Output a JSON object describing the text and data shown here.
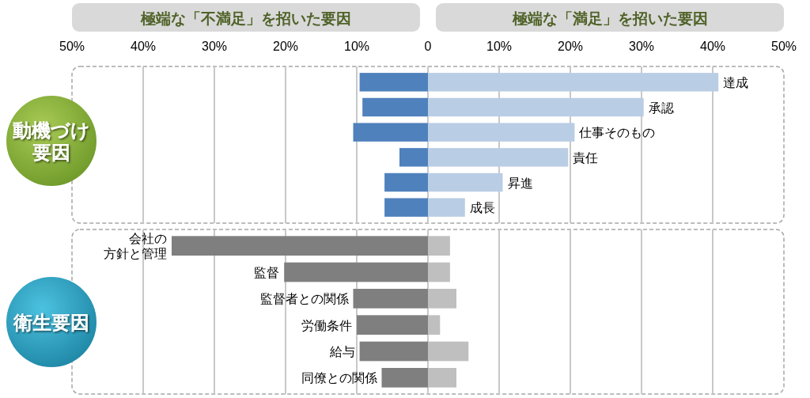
{
  "chart_data": [
    {
      "type": "bar",
      "orientation": "horizontal",
      "stacked": true,
      "title": "動機づけ要因",
      "annotations": [
        "極端な「不満足」を招いた要因",
        "極端な「満足」を招いた要因"
      ],
      "categories": [
        "達成",
        "承認",
        "仕事そのもの",
        "責任",
        "昇進",
        "成長"
      ],
      "series": [
        {
          "color": "#4f81bd",
          "values": [
            -9.6,
            -9.2,
            -10.5,
            -4.0,
            -6.1,
            -6.1
          ]
        },
        {
          "color": "#b9cde5",
          "values": [
            40.8,
            30.3,
            20.6,
            19.7,
            10.5,
            5.2
          ]
        }
      ],
      "xlim": [
        -50,
        50
      ],
      "xticks": [
        {
          "value": -50,
          "label": "50%"
        },
        {
          "value": -40,
          "label": "40%"
        },
        {
          "value": -30,
          "label": "30%"
        },
        {
          "value": -20,
          "label": "20%"
        },
        {
          "value": -10,
          "label": "10%"
        },
        0,
        {
          "value": 10,
          "label": "10%"
        },
        {
          "value": 20,
          "label": "20%"
        },
        {
          "value": 30,
          "label": "30%"
        },
        {
          "value": 40,
          "label": "40%"
        },
        {
          "value": 50,
          "label": "50%"
        }
      ],
      "grid": "x"
    },
    {
      "type": "bar",
      "orientation": "horizontal",
      "stacked": true,
      "title": "衛生要因",
      "categories": [
        "会社の方針と管理",
        "監督",
        "監督者との関係",
        "労働条件",
        "給与",
        "同僚との関係"
      ],
      "series": [
        {
          "color": "#7f7f7f",
          "values": [
            -36.0,
            -20.2,
            -10.5,
            -10.0,
            -9.6,
            -6.5
          ]
        },
        {
          "color": "#bfbfbf",
          "values": [
            3.1,
            3.1,
            4.0,
            1.7,
            5.7,
            4.0
          ]
        }
      ],
      "xlim": [
        -50,
        50
      ],
      "xticks": [
        {
          "value": -50,
          "label": null
        },
        {
          "value": -40,
          "label": null
        },
        {
          "value": -30,
          "label": null
        },
        {
          "value": -20,
          "label": null
        },
        {
          "value": -10,
          "label": null
        },
        {
          "value": 0,
          "label": null
        },
        {
          "value": 10,
          "label": null
        },
        {
          "value": 20,
          "label": null
        },
        {
          "value": 30,
          "label": null
        },
        {
          "value": 40,
          "label": null
        },
        {
          "value": 50,
          "label": null
        }
      ],
      "grid": "x",
      "tick_labels": "y"
    }
  ]
}
